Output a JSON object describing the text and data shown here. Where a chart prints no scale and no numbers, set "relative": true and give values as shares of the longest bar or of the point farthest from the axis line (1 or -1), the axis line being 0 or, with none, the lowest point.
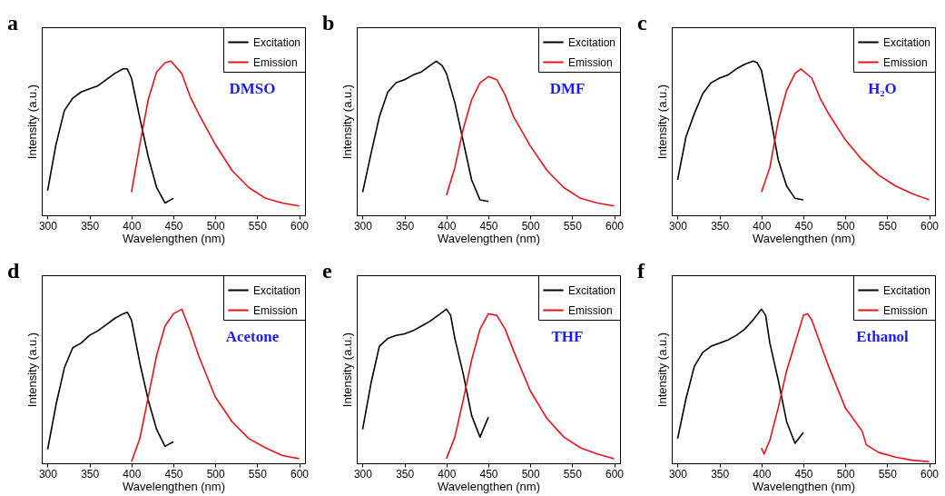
{
  "chart_data": [
    {
      "type": "line",
      "relative": true,
      "xlabel": "Wavelengthen (nm)",
      "ylabel": "Intensity (a.u.)",
      "xlim": [
        293,
        607
      ],
      "xticks": [
        300,
        350,
        400,
        450,
        500,
        550,
        600
      ],
      "legend": "top right",
      "annotations": [
        "a",
        "DMSO"
      ],
      "series": [
        {
          "name": "Excitation",
          "color": "#000000",
          "x": [
            300,
            310,
            320,
            330,
            340,
            350,
            360,
            370,
            380,
            390,
            395,
            400,
            410,
            420,
            430,
            440,
            450
          ],
          "values": [
            0.16,
            0.46,
            0.68,
            0.76,
            0.8,
            0.82,
            0.84,
            0.88,
            0.92,
            0.95,
            0.95,
            0.89,
            0.63,
            0.38,
            0.18,
            0.08,
            0.11
          ]
        },
        {
          "name": "Emission",
          "color": "#e8121b",
          "x": [
            400,
            410,
            420,
            430,
            440,
            447,
            460,
            470,
            480,
            500,
            520,
            540,
            560,
            580,
            600
          ],
          "values": [
            0.15,
            0.46,
            0.75,
            0.93,
            0.99,
            1,
            0.92,
            0.77,
            0.66,
            0.46,
            0.29,
            0.18,
            0.11,
            0.08,
            0.06
          ]
        }
      ]
    },
    {
      "type": "line",
      "relative": true,
      "xlabel": "Wavelengthen (nm)",
      "ylabel": "Intensity (a.u.)",
      "xlim": [
        293,
        607
      ],
      "xticks": [
        300,
        350,
        400,
        450,
        500,
        550,
        600
      ],
      "legend": "top right",
      "annotations": [
        "b",
        "DMF"
      ],
      "series": [
        {
          "name": "Excitation",
          "color": "#000000",
          "x": [
            300,
            310,
            320,
            330,
            340,
            350,
            360,
            370,
            380,
            388,
            395,
            400,
            410,
            420,
            430,
            440,
            450
          ],
          "values": [
            0.15,
            0.4,
            0.64,
            0.8,
            0.86,
            0.88,
            0.91,
            0.93,
            0.97,
            1,
            0.97,
            0.92,
            0.73,
            0.48,
            0.23,
            0.1,
            0.09
          ]
        },
        {
          "name": "Emission",
          "color": "#e8121b",
          "x": [
            400,
            410,
            420,
            430,
            440,
            450,
            460,
            470,
            480,
            500,
            520,
            540,
            560,
            580,
            600
          ],
          "values": [
            0.13,
            0.31,
            0.56,
            0.75,
            0.86,
            0.9,
            0.88,
            0.78,
            0.64,
            0.45,
            0.29,
            0.18,
            0.11,
            0.08,
            0.06
          ]
        }
      ]
    },
    {
      "type": "line",
      "relative": true,
      "xlabel": "Wavelengthen (nm)",
      "ylabel": "Intensity (a.u.)",
      "xlim": [
        293,
        607
      ],
      "xticks": [
        300,
        350,
        400,
        450,
        500,
        550,
        600
      ],
      "legend": "top right",
      "annotations": [
        "c",
        "H₂O"
      ],
      "series": [
        {
          "name": "Excitation",
          "color": "#000000",
          "x": [
            300,
            310,
            320,
            330,
            340,
            350,
            360,
            370,
            380,
            390,
            395,
            400,
            410,
            420,
            430,
            440,
            450
          ],
          "values": [
            0.23,
            0.51,
            0.66,
            0.79,
            0.86,
            0.89,
            0.91,
            0.95,
            0.98,
            1,
            0.99,
            0.94,
            0.66,
            0.36,
            0.19,
            0.11,
            0.1
          ]
        },
        {
          "name": "Emission",
          "color": "#e8121b",
          "x": [
            400,
            410,
            420,
            430,
            440,
            447,
            460,
            470,
            480,
            500,
            520,
            540,
            560,
            580,
            600
          ],
          "values": [
            0.15,
            0.31,
            0.61,
            0.81,
            0.92,
            0.95,
            0.89,
            0.76,
            0.66,
            0.49,
            0.36,
            0.26,
            0.19,
            0.14,
            0.1
          ]
        }
      ]
    },
    {
      "type": "line",
      "relative": true,
      "xlabel": "Wavelengthen (nm)",
      "ylabel": "Intensity (a.u.)",
      "xlim": [
        293,
        607
      ],
      "xticks": [
        300,
        350,
        400,
        450,
        500,
        550,
        600
      ],
      "legend": "top right",
      "annotations": [
        "d",
        "Acetone"
      ],
      "series": [
        {
          "name": "Excitation",
          "color": "#000000",
          "x": [
            300,
            310,
            320,
            330,
            340,
            350,
            360,
            370,
            380,
            390,
            395,
            400,
            410,
            420,
            430,
            440,
            450
          ],
          "values": [
            0.09,
            0.38,
            0.62,
            0.75,
            0.78,
            0.83,
            0.86,
            0.9,
            0.94,
            0.97,
            0.98,
            0.93,
            0.65,
            0.41,
            0.22,
            0.11,
            0.14
          ]
        },
        {
          "name": "Emission",
          "color": "#e8121b",
          "x": [
            400,
            410,
            420,
            430,
            440,
            450,
            460,
            470,
            480,
            500,
            520,
            540,
            560,
            580,
            600
          ],
          "values": [
            0.01,
            0.16,
            0.43,
            0.7,
            0.89,
            0.97,
            1,
            0.86,
            0.7,
            0.43,
            0.27,
            0.16,
            0.1,
            0.05,
            0.03
          ]
        }
      ]
    },
    {
      "type": "line",
      "relative": true,
      "xlabel": "Wavelengthen (nm)",
      "ylabel": "Intensity (a.u.)",
      "xlim": [
        293,
        607
      ],
      "xticks": [
        300,
        350,
        400,
        450,
        500,
        550,
        600
      ],
      "legend": "top right",
      "annotations": [
        "e",
        "THF"
      ],
      "series": [
        {
          "name": "Excitation",
          "color": "#000000",
          "x": [
            300,
            310,
            320,
            330,
            340,
            350,
            360,
            370,
            380,
            390,
            400,
            405,
            410,
            420,
            430,
            440,
            450
          ],
          "values": [
            0.22,
            0.52,
            0.76,
            0.81,
            0.83,
            0.84,
            0.86,
            0.89,
            0.92,
            0.96,
            1,
            0.96,
            0.81,
            0.58,
            0.31,
            0.17,
            0.3
          ]
        },
        {
          "name": "Emission",
          "color": "#e8121b",
          "x": [
            400,
            410,
            420,
            430,
            440,
            450,
            460,
            470,
            480,
            500,
            520,
            540,
            560,
            580,
            600
          ],
          "values": [
            0.03,
            0.17,
            0.41,
            0.67,
            0.87,
            0.97,
            0.96,
            0.87,
            0.73,
            0.47,
            0.29,
            0.17,
            0.1,
            0.06,
            0.03
          ]
        }
      ]
    },
    {
      "type": "line",
      "relative": true,
      "xlabel": "Wavelengthen (nm)",
      "ylabel": "Intensity (a.u.)",
      "xlim": [
        293,
        607
      ],
      "xticks": [
        300,
        350,
        400,
        450,
        500,
        550,
        600
      ],
      "legend": "top right",
      "annotations": [
        "f",
        "Ethanol"
      ],
      "series": [
        {
          "name": "Excitation",
          "color": "#000000",
          "x": [
            300,
            310,
            320,
            330,
            340,
            350,
            360,
            370,
            380,
            390,
            400,
            405,
            410,
            420,
            430,
            440,
            450
          ],
          "values": [
            0.16,
            0.42,
            0.63,
            0.72,
            0.76,
            0.78,
            0.8,
            0.83,
            0.87,
            0.93,
            1,
            0.96,
            0.78,
            0.54,
            0.27,
            0.13,
            0.2
          ]
        },
        {
          "name": "Emission",
          "color": "#e8121b",
          "x": [
            400,
            403,
            410,
            420,
            430,
            440,
            450,
            455,
            460,
            470,
            480,
            500,
            520,
            525,
            540,
            560,
            580,
            600
          ],
          "values": [
            0.1,
            0.06,
            0.15,
            0.36,
            0.6,
            0.78,
            0.96,
            0.97,
            0.93,
            0.78,
            0.63,
            0.36,
            0.21,
            0.12,
            0.07,
            0.04,
            0.02,
            0.01
          ]
        }
      ]
    }
  ]
}
